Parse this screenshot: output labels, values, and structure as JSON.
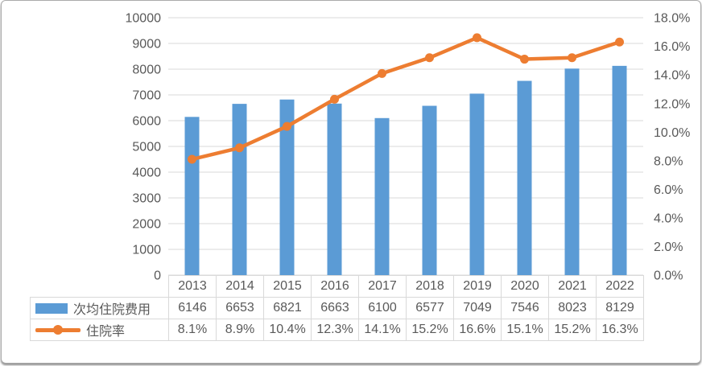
{
  "chart_data": {
    "type": "combo",
    "title": "",
    "categories": [
      "2013",
      "2014",
      "2015",
      "2016",
      "2017",
      "2018",
      "2019",
      "2020",
      "2021",
      "2022"
    ],
    "series": [
      {
        "name": "次均住院费用",
        "type": "bar",
        "axis": "left",
        "color": "#5B9BD5",
        "values": [
          6146,
          6653,
          6821,
          6663,
          6100,
          6577,
          7049,
          7546,
          8023,
          8129
        ],
        "table_labels": [
          "6146",
          "6653",
          "6821",
          "6663",
          "6100",
          "6577",
          "7049",
          "7546",
          "8023",
          "8129"
        ]
      },
      {
        "name": "住院率",
        "type": "line",
        "axis": "right",
        "color": "#ED7D31",
        "values": [
          8.1,
          8.9,
          10.4,
          12.3,
          14.1,
          15.2,
          16.6,
          15.1,
          15.2,
          16.3
        ],
        "table_labels": [
          "8.1%",
          "8.9%",
          "10.4%",
          "12.3%",
          "14.1%",
          "15.2%",
          "16.6%",
          "15.1%",
          "15.2%",
          "16.3%"
        ]
      }
    ],
    "left_axis": {
      "min": 0,
      "max": 10000,
      "step": 1000,
      "tick_labels": [
        "0",
        "1000",
        "2000",
        "3000",
        "4000",
        "5000",
        "6000",
        "7000",
        "8000",
        "9000",
        "10000"
      ]
    },
    "right_axis": {
      "min": 0,
      "max": 18,
      "step": 2,
      "tick_labels": [
        "0.0%",
        "2.0%",
        "4.0%",
        "6.0%",
        "8.0%",
        "10.0%",
        "12.0%",
        "14.0%",
        "16.0%",
        "18.0%"
      ]
    },
    "grid": true,
    "legend_position": "table-left",
    "colors": {
      "gridline": "#d9d9d9",
      "axis_text": "#595959",
      "table_border": "#d9d9d9",
      "background": "#ffffff"
    }
  }
}
